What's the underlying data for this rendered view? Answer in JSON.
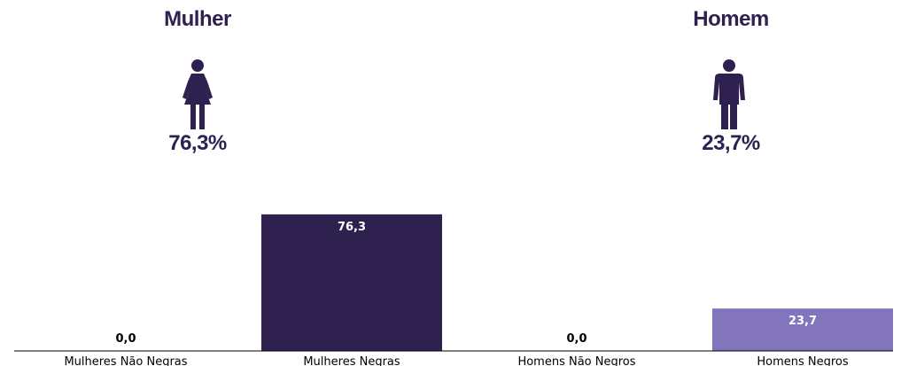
{
  "colors": {
    "title": "#2e2150",
    "dark_bar": "#2e2150",
    "light_bar": "#8275bb",
    "axis": "#000000",
    "label_dark": "#000000",
    "label_on_bar": "#ffffff"
  },
  "header": {
    "left": {
      "title": "Mulher",
      "icon": "female-person-icon",
      "percent": "76,3%"
    },
    "right": {
      "title": "Homem",
      "icon": "male-person-icon",
      "percent": "23,7%"
    }
  },
  "chart_data": {
    "type": "bar",
    "categories": [
      "Mulheres Não Negras",
      "Mulheres Negras",
      "Homens Não Negros",
      "Homens Negros"
    ],
    "values": [
      0.0,
      76.3,
      0.0,
      23.7
    ],
    "value_labels": [
      "0,0",
      "76,3",
      "0,0",
      "23,7"
    ],
    "bar_colors": [
      "#2e2150",
      "#2e2150",
      "#8275bb",
      "#8275bb"
    ],
    "title": "",
    "xlabel": "",
    "ylabel": "",
    "ylim": [
      0,
      100
    ],
    "grid": false,
    "legend": "none"
  }
}
